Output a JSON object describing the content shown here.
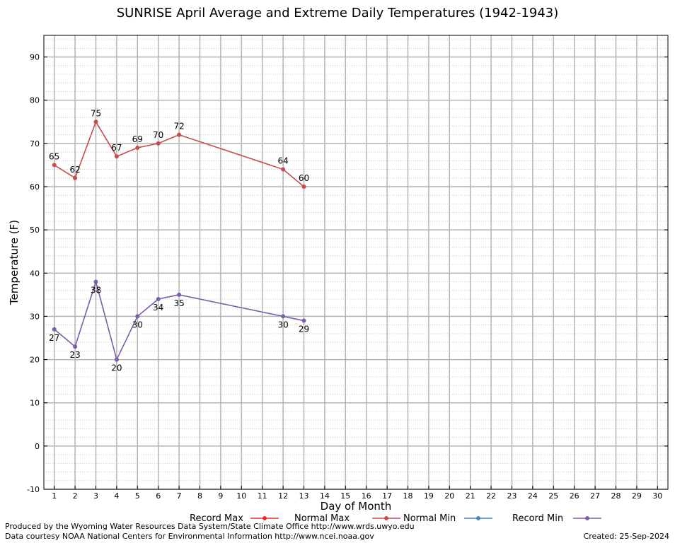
{
  "chart_data": {
    "type": "line",
    "title": "SUNRISE April Average and Extreme Daily Temperatures (1942-1943)",
    "xlabel": "Day of Month",
    "ylabel": "Temperature (F)",
    "xlim": [
      0.5,
      30.5
    ],
    "ylim": [
      -10,
      95
    ],
    "x_ticks": [
      1,
      2,
      3,
      4,
      5,
      6,
      7,
      8,
      9,
      10,
      11,
      12,
      13,
      14,
      15,
      16,
      17,
      18,
      19,
      20,
      21,
      22,
      23,
      24,
      25,
      26,
      27,
      28,
      29,
      30
    ],
    "y_ticks": [
      -10,
      0,
      10,
      20,
      30,
      40,
      50,
      60,
      70,
      80,
      90
    ],
    "grid": true,
    "legend_position": "bottom",
    "legend": [
      {
        "name": "Record Max",
        "color": "#e8302b"
      },
      {
        "name": "Normal Max",
        "color": "#c44e4e"
      },
      {
        "name": "Normal Min",
        "color": "#4a86b8"
      },
      {
        "name": "Record Min",
        "color": "#7b5ea8"
      }
    ],
    "series": [
      {
        "name": "Normal Max",
        "color": "#c44e4e",
        "x": [
          1,
          2,
          3,
          4,
          5,
          6,
          7,
          12,
          13
        ],
        "values": [
          65,
          62,
          75,
          67,
          69,
          70,
          72,
          64,
          60
        ],
        "label_position": "above"
      },
      {
        "name": "Record Min",
        "color": "#7b5ea8",
        "x": [
          1,
          2,
          3,
          4,
          5,
          6,
          7,
          12,
          13
        ],
        "values": [
          27,
          23,
          38,
          20,
          30,
          34,
          35,
          30,
          29
        ],
        "label_position": "below"
      }
    ]
  },
  "footer": {
    "produced_by": "Produced by the Wyoming Water Resources Data System/State Climate Office http://www.wrds.uwyo.edu",
    "data_courtesy": "Data courtesy NOAA National Centers for Environmental Information http://www.ncei.noaa.gov",
    "created": "Created:  25-Sep-2024"
  }
}
